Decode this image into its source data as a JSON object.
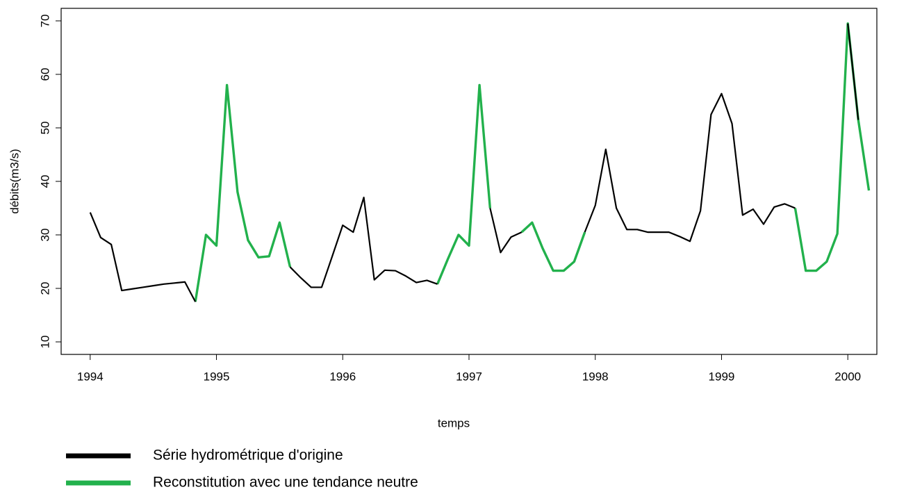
{
  "chart_data": {
    "type": "line",
    "x_label": "temps",
    "y_label": "débits(m3/s)",
    "x": [
      1994,
      1994.083,
      1994.167,
      1994.25,
      1994.333,
      1994.417,
      1994.5,
      1994.583,
      1994.667,
      1994.75,
      1994.833,
      1994.917,
      1995,
      1995.083,
      1995.167,
      1995.25,
      1995.333,
      1995.417,
      1995.5,
      1995.583,
      1995.667,
      1995.75,
      1995.833,
      1995.917,
      1996,
      1996.083,
      1996.167,
      1996.25,
      1996.333,
      1996.417,
      1996.5,
      1996.583,
      1996.667,
      1996.75,
      1996.833,
      1996.917,
      1997,
      1997.083,
      1997.167,
      1997.25,
      1997.333,
      1997.417,
      1997.5,
      1997.583,
      1997.667,
      1997.75,
      1997.833,
      1997.917,
      1998,
      1998.083,
      1998.167,
      1998.25,
      1998.333,
      1998.417,
      1998.5,
      1998.583,
      1998.667,
      1998.75,
      1998.833,
      1998.917,
      1999,
      1999.083,
      1999.167,
      1999.25,
      1999.333,
      1999.417,
      1999.5,
      1999.583,
      1999.667,
      1999.75,
      1999.833,
      1999.917,
      2000,
      2000.083,
      2000.167
    ],
    "series": [
      {
        "name": "Reconstitution avec une tendance neutre",
        "color": "#22b14c",
        "values": [
          null,
          null,
          null,
          null,
          null,
          null,
          null,
          null,
          null,
          null,
          17.5,
          30,
          28,
          58,
          38,
          29,
          25.8,
          26,
          32.3,
          24,
          null,
          null,
          null,
          null,
          null,
          null,
          null,
          null,
          null,
          null,
          null,
          null,
          null,
          20.8,
          25.5,
          30,
          28,
          58,
          35,
          null,
          null,
          30.5,
          32.3,
          27.5,
          23.3,
          23.3,
          25,
          30.5,
          null,
          null,
          null,
          null,
          null,
          null,
          null,
          null,
          null,
          null,
          null,
          null,
          null,
          null,
          null,
          null,
          null,
          null,
          null,
          35,
          23.3,
          23.3,
          25,
          30.2,
          69.5,
          51.5,
          38.3
        ]
      },
      {
        "name": "Série hydrométrique d'origine",
        "color": "#000000",
        "values": [
          34.2,
          29.5,
          28.2,
          19.6,
          19.9,
          20.2,
          20.5,
          20.8,
          21.0,
          21.2,
          17.5,
          null,
          null,
          null,
          null,
          null,
          null,
          null,
          null,
          24,
          22,
          20.2,
          20.2,
          26,
          31.8,
          30.5,
          37,
          21.6,
          23.4,
          23.3,
          22.3,
          21.1,
          21.5,
          20.8,
          null,
          null,
          null,
          null,
          35,
          26.7,
          29.6,
          30.5,
          null,
          null,
          null,
          null,
          null,
          30.5,
          35.5,
          46,
          35,
          31,
          31,
          30.5,
          30.5,
          30.5,
          29.7,
          28.8,
          34.5,
          52.5,
          56.4,
          50.8,
          33.7,
          34.8,
          32,
          35.2,
          35.8,
          35,
          null,
          null,
          null,
          null,
          69.5,
          51.5,
          null
        ]
      }
    ],
    "xlim": [
      1993.77,
      2000.23
    ],
    "xticks": [
      1994,
      1995,
      1996,
      1997,
      1998,
      1999,
      2000
    ],
    "ylim": [
      7.66,
      72.34
    ],
    "yticks": [
      10,
      20,
      30,
      40,
      50,
      60,
      70
    ],
    "legend_order": [
      1,
      0
    ]
  }
}
